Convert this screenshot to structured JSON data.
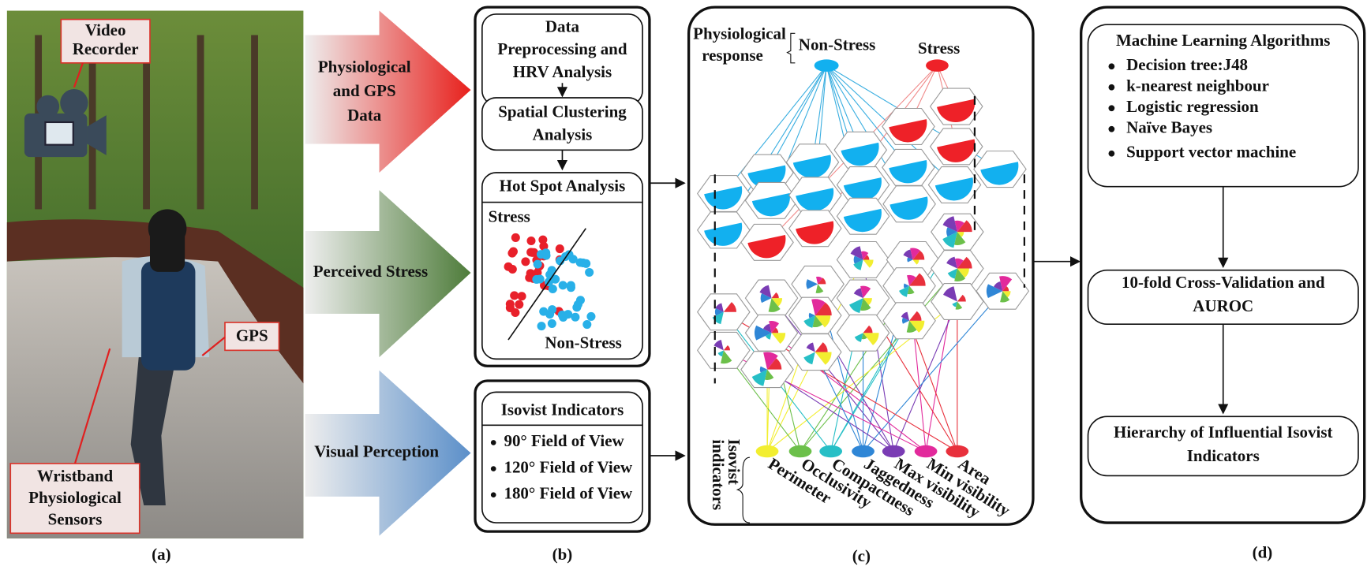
{
  "panel_a": {
    "video_recorder": [
      "Video",
      "Recorder"
    ],
    "gps": "GPS",
    "wristband": [
      "Wristband",
      "Physiological",
      "Sensors"
    ],
    "label": "(a)"
  },
  "arrows": {
    "physiological": [
      "Physiological",
      "and GPS",
      "Data"
    ],
    "perceived": "Perceived Stress",
    "visual": "Visual Perception"
  },
  "panel_b": {
    "preprocessing": [
      "Data",
      "Preprocessing and",
      "HRV Analysis"
    ],
    "clustering": [
      "Spatial Clustering",
      "Analysis"
    ],
    "hotspot": {
      "title": "Hot Spot Analysis",
      "stress": "Stress",
      "non_stress": "Non-Stress"
    },
    "isovist": {
      "title": "Isovist Indicators",
      "items": [
        "90° Field of View",
        "120° Field of View",
        "180° Field of View"
      ]
    },
    "label": "(b)"
  },
  "panel_c": {
    "response": [
      "Physiological",
      "response"
    ],
    "non_stress": "Non-Stress",
    "stress": "Stress",
    "indicators_title": [
      "Isovist",
      "indicators"
    ],
    "indicators": [
      "Perimeter",
      "Occlusivity",
      "Compactness",
      "Jaggedness",
      "Max visibility",
      "Min visibility",
      "Area"
    ],
    "label": "(c)"
  },
  "panel_d": {
    "ml": {
      "title": "Machine Learning Algorithms",
      "items": [
        "Decision tree:J48",
        "k-nearest neighbour",
        "Logistic regression",
        "Naïve Bayes",
        "Support vector machine"
      ]
    },
    "validation": [
      "10-fold Cross-Validation and",
      "AUROC"
    ],
    "hierarchy": [
      "Hierarchy of Influential Isovist",
      "Indicators"
    ],
    "label": "(d)"
  }
}
